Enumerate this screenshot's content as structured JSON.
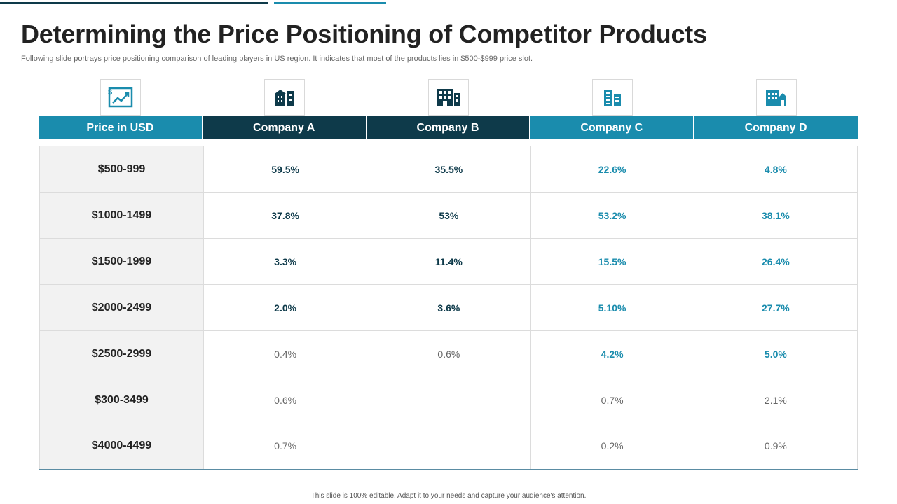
{
  "title": "Determining the Price Positioning of Competitor Products",
  "subtitle": "Following slide portrays price positioning comparison of leading players in US region. It indicates that most of the products lies in $500-$999 price slot.",
  "colors": {
    "dark": "#0e3a4a",
    "teal": "#1a8cad"
  },
  "icons": [
    "price-growth-icon",
    "company-a-building-icon",
    "company-b-building-icon",
    "company-c-building-icon",
    "company-d-building-icon"
  ],
  "headers": [
    "Price in USD",
    "Company A",
    "Company B",
    "Company C",
    "Company D"
  ],
  "rows": [
    {
      "price": "$500-999",
      "a": "59.5%",
      "b": "35.5%",
      "c": "22.6%",
      "d": "4.8%"
    },
    {
      "price": "$1000-1499",
      "a": "37.8%",
      "b": "53%",
      "c": "53.2%",
      "d": "38.1%"
    },
    {
      "price": "$1500-1999",
      "a": "3.3%",
      "b": "11.4%",
      "c": "15.5%",
      "d": "26.4%"
    },
    {
      "price": "$2000-2499",
      "a": "2.0%",
      "b": "3.6%",
      "c": "5.10%",
      "d": "27.7%"
    },
    {
      "price": "$2500-2999",
      "a": "0.4%",
      "b": "0.6%",
      "c": "4.2%",
      "d": "5.0%"
    },
    {
      "price": "$300-3499",
      "a": "0.6%",
      "b": "",
      "c": "0.7%",
      "d": "2.1%"
    },
    {
      "price": "$4000-4499",
      "a": "0.7%",
      "b": "",
      "c": "0.2%",
      "d": "0.9%"
    }
  ],
  "footer": "This slide is 100% editable.  Adapt it to your needs and capture your audience's attention."
}
